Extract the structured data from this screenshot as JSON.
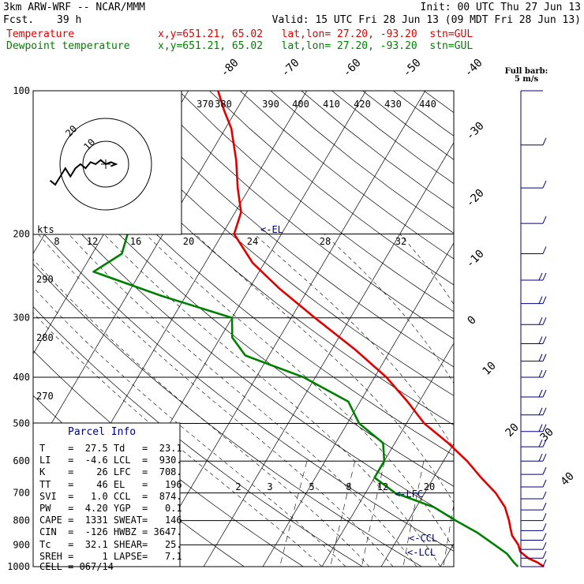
{
  "header": {
    "model": "3km ARW-WRF -- NCAR/MMM",
    "init": "Init: 00 UTC Thu 27 Jun 13",
    "fcst_label": "Fcst.",
    "fcst_value": "39 h",
    "valid": "Valid: 15 UTC Fri 28 Jun 13 (09 MDT Fri 28 Jun 13)",
    "lines": [
      {
        "label": "Temperature",
        "info": "x,y=651.21, 65.02   lat,lon= 27.20, -93.20  stn=GUL",
        "color": "#e00000"
      },
      {
        "label": "Dewpoint temperature",
        "info": "x,y=651.21, 65.02   lat,lon= 27.20, -93.20  stn=GUL",
        "color": "#008000"
      }
    ]
  },
  "barb_legend": {
    "line1": "Full barb:",
    "line2": "5 m/s"
  },
  "parcel_info": {
    "title": "Parcel Info",
    "rows": [
      {
        "k1": "T",
        "v1": "27.5",
        "k2": "Td",
        "v2": "23.1"
      },
      {
        "k1": "LI",
        "v1": "-4.6",
        "k2": "LCL",
        "v2": "930."
      },
      {
        "k1": "K",
        "v1": "26",
        "k2": "LFC",
        "v2": "708."
      },
      {
        "k1": "TT",
        "v1": "46",
        "k2": "EL",
        "v2": "196"
      },
      {
        "k1": "SVI",
        "v1": "1.0",
        "k2": "CCL",
        "v2": "874."
      },
      {
        "k1": "PW",
        "v1": "4.20",
        "k2": "YGP",
        "v2": "0.1"
      },
      {
        "k1": "CAPE",
        "v1": "1331",
        "k2": "SWEAT",
        "v2": "146"
      },
      {
        "k1": "CIN",
        "v1": "-126",
        "k2": "HWBZ",
        "v2": "3647."
      },
      {
        "k1": "Tc",
        "v1": "32.1",
        "k2": "SHEAR",
        "v2": "25."
      },
      {
        "k1": "SREH",
        "v1": "1",
        "k2": "LAPSE",
        "v2": "7.1"
      }
    ],
    "cell": "CELL = 067/14"
  },
  "chart_data": {
    "type": "skew-t",
    "pressure_levels": [
      100,
      200,
      300,
      400,
      500,
      600,
      700,
      800,
      900,
      1000
    ],
    "isotherm_labels": [
      -80,
      -70,
      -60,
      -50,
      -40,
      -30,
      -20,
      -10,
      0,
      10,
      20,
      30,
      40
    ],
    "theta_labels": [
      370,
      380,
      390,
      400,
      410,
      420,
      430,
      440
    ],
    "theta_side_labels": [
      290,
      280,
      270
    ],
    "mixing_ratio_labels": [
      2,
      3,
      5,
      8,
      12,
      20
    ],
    "corner_label": "-50",
    "level_markers": [
      "EL",
      "LFC",
      "CCL",
      "LCL"
    ],
    "series": [
      {
        "name": "Temperature",
        "color": "#e00000",
        "points": [
          [
            100,
            -75
          ],
          [
            110,
            -72
          ],
          [
            120,
            -69
          ],
          [
            140,
            -65
          ],
          [
            160,
            -62
          ],
          [
            180,
            -59
          ],
          [
            200,
            -58
          ],
          [
            230,
            -52
          ],
          [
            260,
            -45
          ],
          [
            300,
            -36
          ],
          [
            350,
            -26
          ],
          [
            400,
            -18
          ],
          [
            450,
            -12
          ],
          [
            500,
            -7
          ],
          [
            550,
            -1
          ],
          [
            600,
            4
          ],
          [
            650,
            8
          ],
          [
            700,
            12
          ],
          [
            750,
            15
          ],
          [
            800,
            17
          ],
          [
            830,
            18
          ],
          [
            860,
            19
          ],
          [
            900,
            21
          ],
          [
            930,
            22
          ],
          [
            960,
            24
          ],
          [
            980,
            26
          ],
          [
            1000,
            27.5
          ]
        ]
      },
      {
        "name": "Dewpoint temperature",
        "color": "#008000",
        "points": [
          [
            100,
            -84
          ],
          [
            120,
            -82
          ],
          [
            140,
            -80
          ],
          [
            160,
            -78
          ],
          [
            180,
            -78
          ],
          [
            200,
            -76
          ],
          [
            220,
            -75
          ],
          [
            240,
            -78
          ],
          [
            270,
            -64
          ],
          [
            300,
            -50
          ],
          [
            330,
            -48
          ],
          [
            360,
            -44
          ],
          [
            400,
            -32
          ],
          [
            450,
            -22
          ],
          [
            500,
            -18
          ],
          [
            550,
            -12
          ],
          [
            600,
            -10
          ],
          [
            650,
            -10
          ],
          [
            700,
            -5
          ],
          [
            750,
            3
          ],
          [
            800,
            8
          ],
          [
            850,
            13
          ],
          [
            900,
            17
          ],
          [
            940,
            20
          ],
          [
            980,
            22
          ],
          [
            1000,
            23.1
          ]
        ]
      }
    ],
    "hodograph": {
      "unit": "kts",
      "ring_labels": [
        10,
        20
      ],
      "points": [
        [
          -22,
          -8
        ],
        [
          -20,
          -10
        ],
        [
          -18,
          -6
        ],
        [
          -16,
          -2
        ],
        [
          -14,
          -6
        ],
        [
          -12,
          -2
        ],
        [
          -10,
          0
        ],
        [
          -8,
          -2
        ],
        [
          -6,
          1
        ],
        [
          -4,
          0
        ],
        [
          -2,
          2
        ],
        [
          0,
          0
        ],
        [
          2,
          1
        ],
        [
          4,
          0
        ],
        [
          2,
          -1
        ]
      ]
    },
    "winds_ms": [
      [
        100,
        2,
        350
      ],
      [
        130,
        3,
        340
      ],
      [
        160,
        4,
        320
      ],
      [
        190,
        6,
        310
      ],
      [
        220,
        7,
        300
      ],
      [
        250,
        9,
        290
      ],
      [
        280,
        10,
        280
      ],
      [
        310,
        11,
        275
      ],
      [
        340,
        12,
        270
      ],
      [
        370,
        12,
        265
      ],
      [
        400,
        12,
        262
      ],
      [
        440,
        11,
        258
      ],
      [
        480,
        10,
        255
      ],
      [
        520,
        9,
        252
      ],
      [
        560,
        8,
        250
      ],
      [
        600,
        8,
        245
      ],
      [
        640,
        7,
        240
      ],
      [
        680,
        6,
        235
      ],
      [
        720,
        5,
        230
      ],
      [
        760,
        4,
        220
      ],
      [
        800,
        4,
        210
      ],
      [
        840,
        3,
        180
      ],
      [
        880,
        3,
        160
      ],
      [
        920,
        4,
        130
      ],
      [
        960,
        5,
        110
      ],
      [
        1000,
        5,
        100
      ]
    ]
  }
}
